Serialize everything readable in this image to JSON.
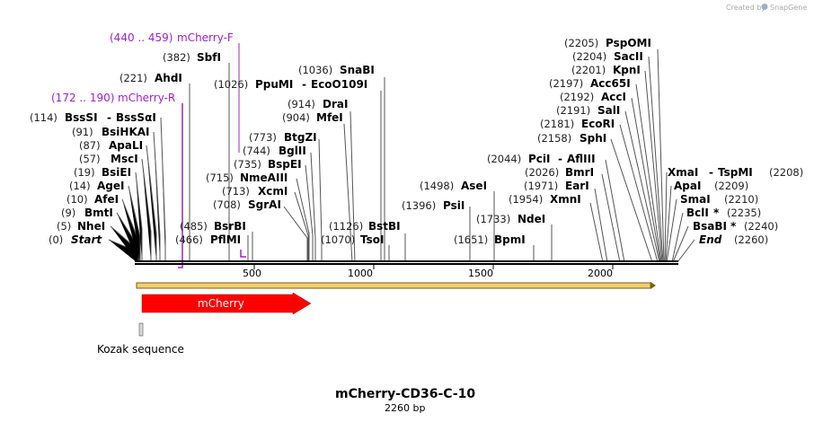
{
  "credit": "Created by",
  "brand": "SnapGene",
  "colors": {
    "primer": "#a020d0",
    "feature": "#ff0000",
    "orf": "#e8b830",
    "backbone": "#000000"
  },
  "title": "mCherry-CD36-C-10",
  "length_label": "2260 bp",
  "ruler": [
    "500",
    "1000",
    "1500",
    "2000"
  ],
  "feature_label": "mCherry",
  "kozak_label": "Kozak sequence",
  "primers": [
    {
      "range": "(440 .. 459)",
      "name": "mCherry-F"
    },
    {
      "range": "(172 .. 190)",
      "name": "mCherry-R"
    }
  ],
  "left_sites": [
    {
      "pos": "(0)",
      "name": "Start"
    },
    {
      "pos": "(5)",
      "name": "NheI"
    },
    {
      "pos": "(9)",
      "name": "BmtI"
    },
    {
      "pos": "(10)",
      "name": "AfeI"
    },
    {
      "pos": "(14)",
      "name": "AgeI"
    },
    {
      "pos": "(19)",
      "name": "BsiEI"
    },
    {
      "pos": "(57)",
      "name": "MscI"
    },
    {
      "pos": "(87)",
      "name": "ApaLI"
    },
    {
      "pos": "(91)",
      "name": "BsiHKAI"
    },
    {
      "pos": "(114)",
      "name": "BssSI",
      "name2": "BssSαI"
    }
  ],
  "ahd": {
    "pos": "(221)",
    "name": "AhdI"
  },
  "sbf": {
    "pos": "(382)",
    "name": "SbfI"
  },
  "mid_sites": [
    {
      "pos": "(466)",
      "name": "PflMI"
    },
    {
      "pos": "(485)",
      "name": "BsrBI"
    },
    {
      "pos": "(708)",
      "name": "SgrAI"
    },
    {
      "pos": "(713)",
      "name": "XcmI"
    },
    {
      "pos": "(715)",
      "name": "NmeAIII"
    },
    {
      "pos": "(735)",
      "name": "BspEI"
    },
    {
      "pos": "(744)",
      "name": "BglII"
    },
    {
      "pos": "(773)",
      "name": "BtgZI"
    }
  ],
  "mfe": {
    "pos": "(904)",
    "name": "MfeI"
  },
  "dra": {
    "pos": "(914)",
    "name": "DraI"
  },
  "ppumi": {
    "pos": "(1026)",
    "name": "PpuMI",
    "name2": "EcoO109I"
  },
  "snab": {
    "pos": "(1036)",
    "name": "SnaBI"
  },
  "tso": {
    "pos": "(1070)",
    "name": "TsoI"
  },
  "bstb": {
    "pos": "(1126)",
    "name": "BstBI"
  },
  "psi": {
    "pos": "(1396)",
    "name": "PsiI"
  },
  "ase": {
    "pos": "(1498)",
    "name": "AseI"
  },
  "bpm": {
    "pos": "(1651)",
    "name": "BpmI"
  },
  "nde": {
    "pos": "(1733)",
    "name": "NdeI"
  },
  "right_mid": [
    {
      "pos": "(1954)",
      "name": "XmnI"
    },
    {
      "pos": "(1971)",
      "name": "EarI"
    },
    {
      "pos": "(2026)",
      "name": "BmrI"
    },
    {
      "pos": "(2044)",
      "name": "PciI",
      "name2": "AflIII"
    }
  ],
  "right_top": [
    {
      "pos": "(2158)",
      "name": "SphI"
    },
    {
      "pos": "(2181)",
      "name": "EcoRI"
    },
    {
      "pos": "(2191)",
      "name": "SalI"
    },
    {
      "pos": "(2192)",
      "name": "AccI"
    },
    {
      "pos": "(2197)",
      "name": "Acc65I"
    },
    {
      "pos": "(2201)",
      "name": "KpnI"
    },
    {
      "pos": "(2204)",
      "name": "SacII"
    },
    {
      "pos": "(2205)",
      "name": "PspOMI"
    }
  ],
  "right_side": [
    {
      "name": "XmaI",
      "name2": "TspMI",
      "pos": "(2208)"
    },
    {
      "name": "ApaI",
      "pos": "(2209)"
    },
    {
      "name": "SmaI",
      "pos": "(2210)"
    },
    {
      "name": "BclI",
      "star": "*",
      "pos": "(2235)"
    },
    {
      "name": "BsaBI",
      "star": "*",
      "pos": "(2240)"
    },
    {
      "name": "End",
      "pos": "(2260)"
    }
  ]
}
